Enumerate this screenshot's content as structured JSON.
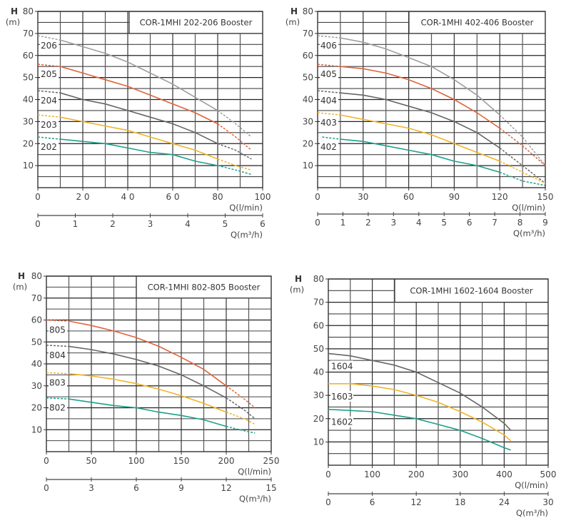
{
  "chart_data": [
    {
      "type": "line",
      "title": "COR-1MHI 202-206 Booster",
      "ylabel": "H",
      "yunit": "(m)",
      "xlabel": "Q(l/min)",
      "x2label": "Q(m³/h)",
      "xlim": [
        0,
        100
      ],
      "ylim": [
        0,
        80
      ],
      "x2lim": [
        0,
        6
      ],
      "xticks": [
        0,
        20,
        40,
        60,
        80,
        100
      ],
      "xtick_labels": [
        "0",
        "2 0",
        "4 0",
        "6 0",
        "80",
        "100"
      ],
      "x2ticks": [
        0,
        1,
        2,
        3,
        4,
        5,
        6
      ],
      "yticks": [
        10,
        20,
        30,
        40,
        50,
        60,
        70,
        80
      ],
      "series": [
        {
          "name": "206",
          "color": "#9e9e9e",
          "x": [
            0,
            10,
            20,
            30,
            40,
            50,
            60,
            70,
            80,
            88,
            95
          ],
          "y": [
            69,
            67,
            64,
            61,
            57,
            52,
            47,
            41,
            35,
            29,
            23
          ]
        },
        {
          "name": "205",
          "color": "#e0643c",
          "x": [
            0,
            10,
            20,
            30,
            40,
            50,
            60,
            70,
            80,
            88,
            95
          ],
          "y": [
            56,
            55,
            52,
            49,
            46,
            42,
            38,
            34,
            29,
            23,
            17
          ]
        },
        {
          "name": "204",
          "color": "#666666",
          "x": [
            0,
            10,
            20,
            30,
            40,
            50,
            60,
            70,
            80,
            88,
            95
          ],
          "y": [
            44,
            43,
            40,
            38,
            35,
            32,
            29,
            25,
            20,
            17,
            13
          ]
        },
        {
          "name": "203",
          "color": "#f0b428",
          "x": [
            0,
            10,
            20,
            30,
            40,
            50,
            60,
            70,
            80,
            88,
            95
          ],
          "y": [
            33,
            32,
            30,
            28,
            26,
            23,
            20,
            17,
            13,
            10,
            8
          ]
        },
        {
          "name": "202",
          "color": "#1ea08c",
          "x": [
            0,
            10,
            20,
            30,
            40,
            50,
            60,
            70,
            80,
            88,
            95
          ],
          "y": [
            23,
            22,
            21,
            20,
            18,
            16,
            15,
            12,
            10,
            8,
            6
          ]
        }
      ]
    },
    {
      "type": "line",
      "title": "COR-1MHI 402-406 Booster",
      "ylabel": "H",
      "yunit": "(m)",
      "xlabel": "Q(l/min)",
      "x2label": "Q(m³/h)",
      "xlim": [
        0,
        150
      ],
      "ylim": [
        0,
        80
      ],
      "x2lim": [
        0,
        9
      ],
      "xticks": [
        0,
        30,
        60,
        90,
        120,
        150
      ],
      "xtick_labels": [
        "0",
        "30",
        "60",
        "90",
        "120",
        "150"
      ],
      "x2ticks": [
        0,
        1,
        2,
        3,
        4,
        5,
        6,
        7,
        8,
        9
      ],
      "yticks": [
        10,
        20,
        30,
        40,
        50,
        60,
        70,
        80
      ],
      "series": [
        {
          "name": "406",
          "color": "#9e9e9e",
          "x": [
            0,
            15,
            30,
            45,
            60,
            75,
            90,
            105,
            120,
            135,
            150
          ],
          "y": [
            69,
            68,
            66,
            63,
            59,
            55,
            49,
            42,
            33,
            23,
            10
          ]
        },
        {
          "name": "405",
          "color": "#e0643c",
          "x": [
            0,
            15,
            30,
            45,
            60,
            75,
            90,
            105,
            120,
            135,
            150
          ],
          "y": [
            56,
            55,
            54,
            52,
            49,
            45,
            40,
            34,
            27,
            19,
            10
          ]
        },
        {
          "name": "404",
          "color": "#666666",
          "x": [
            0,
            15,
            30,
            45,
            60,
            75,
            90,
            105,
            120,
            135,
            150
          ],
          "y": [
            44,
            43,
            42,
            40,
            37,
            34,
            30,
            25,
            18,
            10,
            2
          ]
        },
        {
          "name": "403",
          "color": "#f0b428",
          "x": [
            0,
            15,
            30,
            45,
            60,
            75,
            90,
            105,
            120,
            135,
            150
          ],
          "y": [
            34,
            33,
            31,
            29,
            27,
            24,
            20,
            16,
            12,
            7,
            2
          ]
        },
        {
          "name": "402",
          "color": "#1ea08c",
          "x": [
            3,
            15,
            30,
            45,
            60,
            75,
            90,
            105,
            120,
            135,
            150
          ],
          "y": [
            23,
            22,
            21,
            19,
            17,
            15,
            12,
            10,
            7,
            3,
            1
          ]
        }
      ]
    },
    {
      "type": "line",
      "title": "COR-1MHI 802-805 Booster",
      "ylabel": "H",
      "yunit": "(m)",
      "xlabel": "Q(l/min)",
      "x2label": "Q(m³/h)",
      "xlim": [
        0,
        250
      ],
      "ylim": [
        0,
        80
      ],
      "x2lim": [
        0,
        15
      ],
      "xticks": [
        0,
        50,
        100,
        150,
        200,
        250
      ],
      "xtick_labels": [
        "0",
        "50",
        "100",
        "150",
        "200",
        "250"
      ],
      "x2ticks": [
        0,
        3,
        6,
        9,
        12,
        15
      ],
      "yticks": [
        10,
        20,
        30,
        40,
        50,
        60,
        70,
        80
      ],
      "series": [
        {
          "name": "805",
          "color": "#e0643c",
          "x": [
            0,
            25,
            50,
            75,
            100,
            125,
            150,
            175,
            200,
            220,
            232
          ],
          "y": [
            60,
            59.5,
            57.5,
            55,
            52,
            48,
            43,
            37.5,
            30,
            24,
            20
          ]
        },
        {
          "name": "804",
          "color": "#666666",
          "x": [
            0,
            25,
            50,
            75,
            100,
            125,
            150,
            175,
            200,
            220,
            232
          ],
          "y": [
            48.5,
            48,
            46.5,
            44.5,
            42,
            39,
            35,
            30,
            24.5,
            19,
            15
          ]
        },
        {
          "name": "803",
          "color": "#f0b428",
          "x": [
            0,
            25,
            50,
            75,
            100,
            125,
            150,
            175,
            200,
            220,
            232
          ],
          "y": [
            36,
            35.5,
            34.5,
            33,
            31,
            28.5,
            25.5,
            22,
            18,
            15,
            12.5
          ]
        },
        {
          "name": "802",
          "color": "#1ea08c",
          "x": [
            0,
            25,
            50,
            75,
            100,
            125,
            150,
            175,
            200,
            220,
            232
          ],
          "y": [
            24.5,
            24,
            22.5,
            21,
            20,
            18,
            16.5,
            14.5,
            11.5,
            9.5,
            8.5
          ]
        }
      ]
    },
    {
      "type": "line",
      "title": "COR-1MHI 1602-1604 Booster",
      "ylabel": "H",
      "yunit": "(m)",
      "xlabel": "Q(l/min)",
      "x2label": "Q(m³/h)",
      "xlim": [
        0,
        500
      ],
      "ylim": [
        0,
        80
      ],
      "x2lim": [
        0,
        30
      ],
      "xticks": [
        0,
        100,
        200,
        300,
        400,
        500
      ],
      "xtick_labels": [
        "0",
        "100",
        "200",
        "300",
        "400",
        "500"
      ],
      "x2ticks": [
        0,
        6,
        12,
        18,
        24,
        30
      ],
      "yticks": [
        10,
        20,
        30,
        40,
        50,
        60,
        70,
        80
      ],
      "series": [
        {
          "name": "1604",
          "color": "#666666",
          "x": [
            0,
            50,
            100,
            150,
            200,
            250,
            300,
            350,
            400,
            415
          ],
          "y": [
            48,
            47,
            45,
            43,
            40,
            35.5,
            31,
            25,
            18,
            15
          ]
        },
        {
          "name": "1603",
          "color": "#f0b428",
          "x": [
            0,
            50,
            100,
            150,
            200,
            250,
            300,
            350,
            400,
            415
          ],
          "y": [
            35,
            35,
            34,
            32.5,
            30,
            27,
            23,
            18.5,
            13,
            10.5
          ]
        },
        {
          "name": "1602",
          "color": "#1ea08c",
          "x": [
            0,
            50,
            100,
            150,
            200,
            250,
            300,
            350,
            400,
            415
          ],
          "y": [
            24,
            23.5,
            23,
            21.5,
            20,
            17.5,
            15,
            11.5,
            7.5,
            6.5
          ]
        }
      ]
    }
  ]
}
